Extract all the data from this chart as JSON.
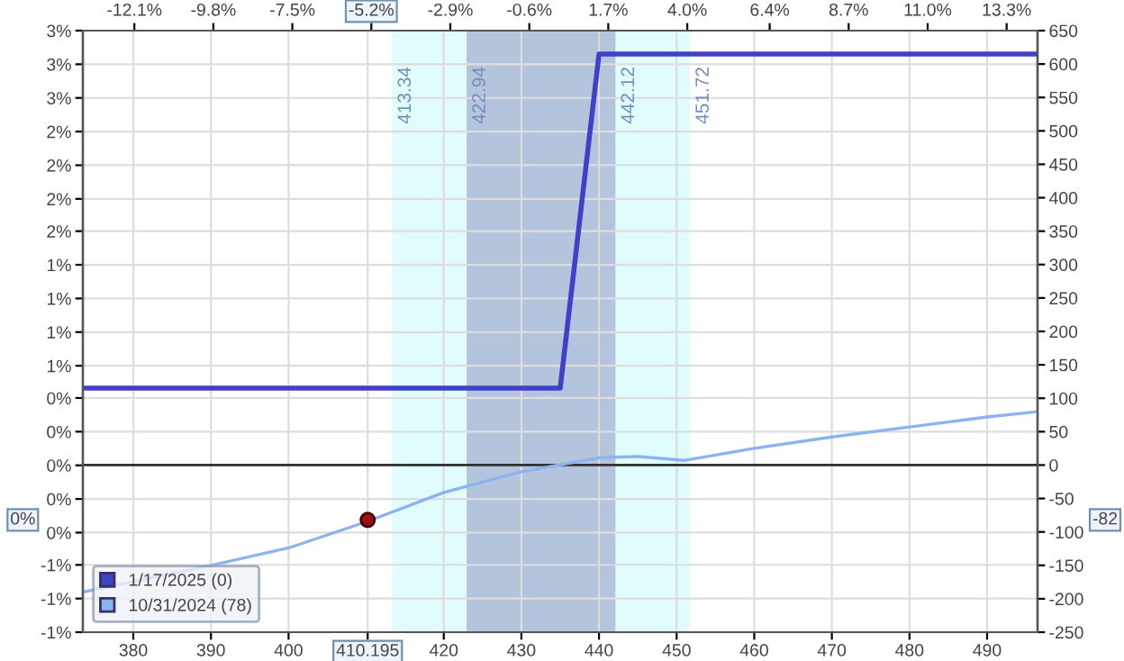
{
  "chart_data": {
    "type": "line",
    "series": [
      {
        "name": "1/17/2025 (0)",
        "color": "#4040c8",
        "axis": "y2",
        "x": [
          373.5,
          435,
          440,
          496.5
        ],
        "values": [
          115,
          115,
          615,
          615
        ]
      },
      {
        "name": "10/31/2024 (78)",
        "color": "#8ab4f0",
        "axis": "y2",
        "x": [
          373.5,
          390,
          400,
          410,
          420,
          430,
          440,
          445,
          451,
          460,
          470,
          480,
          490,
          496.5
        ],
        "values": [
          -190,
          -150,
          -124,
          -85,
          -41,
          -10,
          11,
          13,
          7,
          25,
          42,
          57,
          72,
          80
        ]
      },
      {
        "type": "scatter",
        "marker": "circle",
        "color": "#a01010",
        "axis": "y2",
        "x": [
          410.195
        ],
        "values": [
          -82
        ]
      }
    ],
    "xlim": [
      373.5,
      496.5
    ],
    "xticks": [
      380,
      390,
      400,
      410.195,
      420,
      430,
      440,
      450,
      460,
      470,
      480,
      490
    ],
    "x2lim": [
      -13.6,
      14.2
    ],
    "x2ticks": [
      {
        "value": -12.1,
        "label": "-12.1%"
      },
      {
        "value": -9.8,
        "label": "-9.8%"
      },
      {
        "value": -7.5,
        "label": "-7.5%"
      },
      {
        "value": -5.2,
        "label": "-5.2%"
      },
      {
        "value": -2.9,
        "label": "-2.9%"
      },
      {
        "value": -0.6,
        "label": "-0.6%"
      },
      {
        "value": 1.7,
        "label": "1.7%"
      },
      {
        "value": 4.0,
        "label": "4.0%"
      },
      {
        "value": 6.4,
        "label": "6.4%"
      },
      {
        "value": 8.7,
        "label": "8.7%"
      },
      {
        "value": 11.0,
        "label": "11.0%"
      },
      {
        "value": 13.3,
        "label": "13.3%"
      }
    ],
    "ylim": [
      -1.19,
      3.1
    ],
    "yticks": [
      {
        "value": 3.1,
        "label": "3%"
      },
      {
        "value": 2.86,
        "label": "3%"
      },
      {
        "value": 2.62,
        "label": "3%"
      },
      {
        "value": 2.38,
        "label": "2%"
      },
      {
        "value": 2.14,
        "label": "2%"
      },
      {
        "value": 1.9,
        "label": "2%"
      },
      {
        "value": 1.67,
        "label": "2%"
      },
      {
        "value": 1.43,
        "label": "1%"
      },
      {
        "value": 1.19,
        "label": "1%"
      },
      {
        "value": 0.95,
        "label": "1%"
      },
      {
        "value": 0.71,
        "label": "1%"
      },
      {
        "value": 0.48,
        "label": "0%"
      },
      {
        "value": 0.24,
        "label": "0%"
      },
      {
        "value": 0,
        "label": "0%"
      },
      {
        "value": -0.24,
        "label": "0%"
      },
      {
        "value": -0.48,
        "label": "0%"
      },
      {
        "value": -0.71,
        "label": "-1%"
      },
      {
        "value": -0.95,
        "label": "-1%"
      },
      {
        "value": -1.19,
        "label": "-1%"
      }
    ],
    "y2lim": [
      -250,
      650
    ],
    "y2ticks": [
      650,
      600,
      550,
      500,
      450,
      400,
      350,
      300,
      250,
      200,
      150,
      100,
      50,
      0,
      -50,
      -100,
      -150,
      -200,
      -250
    ],
    "bands": [
      {
        "axis": "x",
        "from": 413.34,
        "to": 451.72,
        "color": "#e0fcfc"
      },
      {
        "axis": "x",
        "from": 422.94,
        "to": 442.12,
        "color": "#b4c4dc"
      }
    ],
    "ref_lines": [
      {
        "axis": "y2",
        "value": 0,
        "color": "#303030"
      }
    ],
    "annotations": [
      "-82",
      "0%",
      {
        "text": "413.34",
        "x": 413.34
      },
      {
        "text": "422.94",
        "x": 422.94
      },
      {
        "text": "442.12",
        "x": 442.12
      },
      {
        "text": "451.72",
        "x": 451.72
      }
    ],
    "grid": true,
    "legend": "bottom left",
    "marker": "none",
    "line_style": "solid"
  }
}
